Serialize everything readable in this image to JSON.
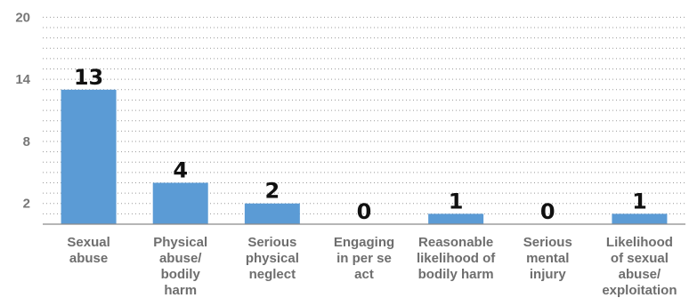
{
  "colors": {
    "bar": "#5b9bd5",
    "grid": "#9a9a9a",
    "text": "#6e6e6e",
    "value_text": "#111111"
  },
  "chart_data": {
    "type": "bar",
    "title": "",
    "xlabel": "",
    "ylabel": "",
    "categories": [
      [
        "Sexual",
        "abuse"
      ],
      [
        "Physical",
        "abuse/",
        "bodily",
        "harm"
      ],
      [
        "Serious",
        "physical",
        "neglect"
      ],
      [
        "Engaging",
        "in per se",
        "act"
      ],
      [
        "Reasonable",
        "likelihood of",
        "bodily harm"
      ],
      [
        "Serious",
        "mental",
        "injury"
      ],
      [
        "Likelihood",
        "of sexual",
        "abuse/",
        "exploitation"
      ]
    ],
    "values": [
      13,
      4,
      2,
      0,
      1,
      0,
      1
    ],
    "data_labels": [
      "13",
      "4",
      "2",
      "0",
      "1",
      "0",
      "1"
    ],
    "yticks": [
      2,
      8,
      14,
      20
    ],
    "ylim": [
      0,
      20
    ],
    "grid": true,
    "legend": "none"
  }
}
